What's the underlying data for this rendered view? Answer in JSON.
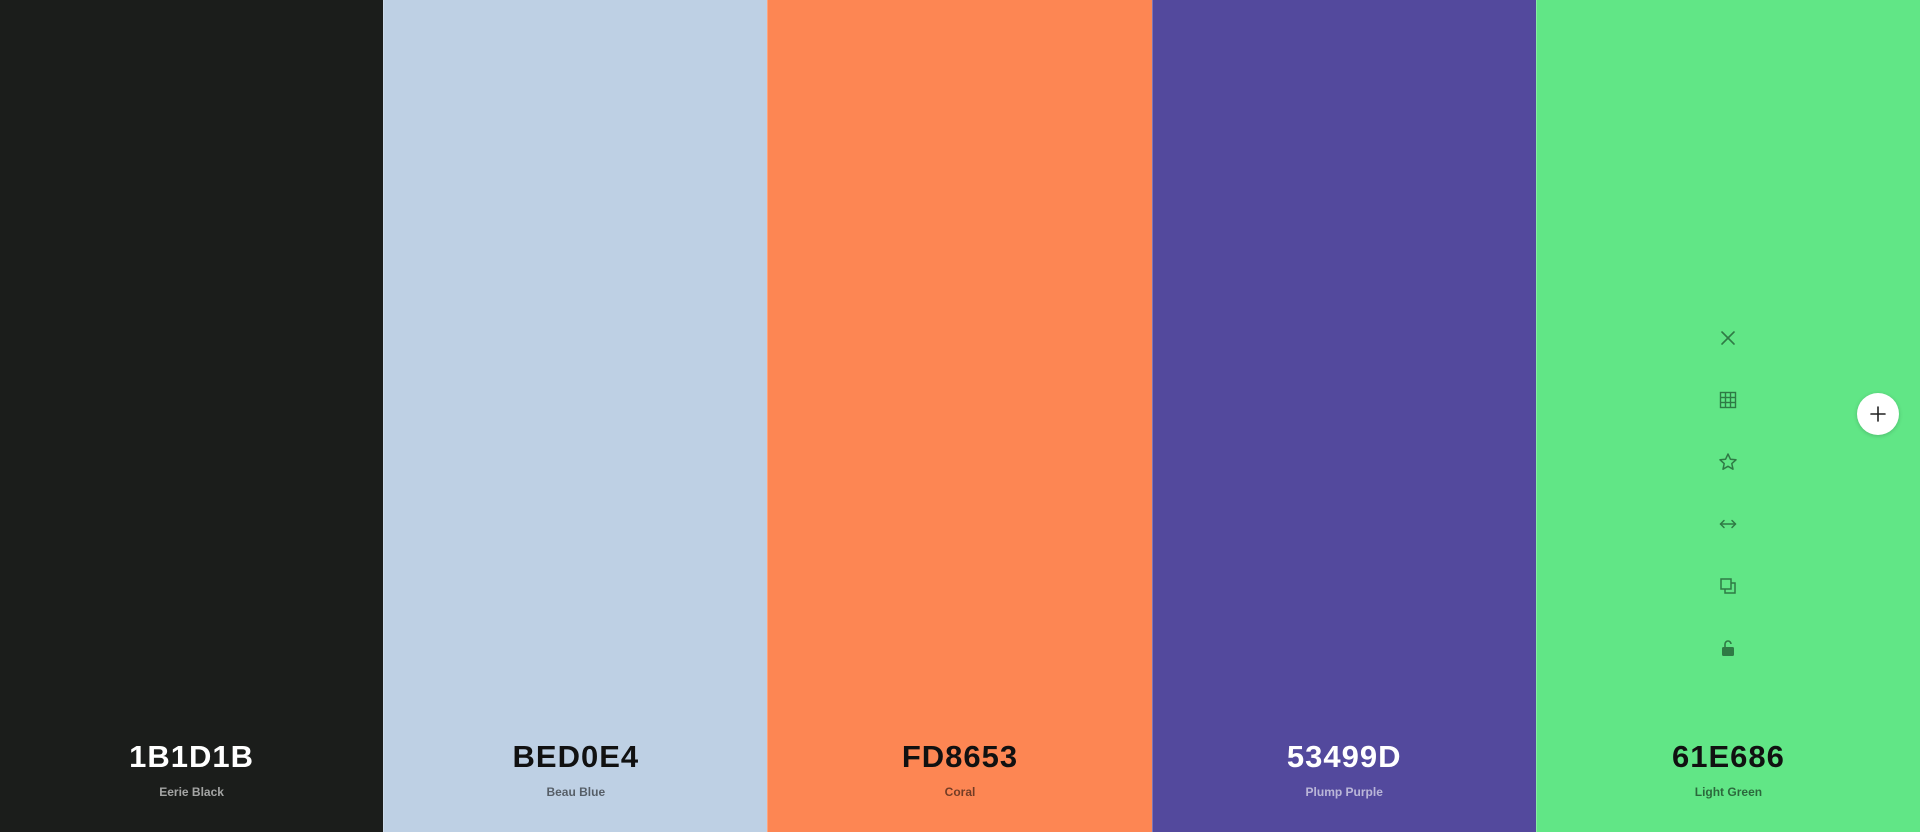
{
  "swatches": [
    {
      "hex": "1B1D1B",
      "name": "Eerie Black",
      "color": "#1B1D1B",
      "text_theme": "dark"
    },
    {
      "hex": "BED0E4",
      "name": "Beau Blue",
      "color": "#BED0E4",
      "text_theme": "light"
    },
    {
      "hex": "FD8653",
      "name": "Coral",
      "color": "#FD8653",
      "text_theme": "light"
    },
    {
      "hex": "53499D",
      "name": "Plump Purple",
      "color": "#53499D",
      "text_theme": "dark"
    },
    {
      "hex": "61E686",
      "name": "Light Green",
      "color": "#61E686",
      "text_theme": "light"
    }
  ],
  "hover_tools": {
    "swatch_index": 4,
    "icons": [
      "close-icon",
      "grid-icon",
      "star-icon",
      "arrows-horizontal-icon",
      "copy-icon",
      "unlock-icon"
    ]
  },
  "add_button": {
    "icon": "plus-icon"
  }
}
